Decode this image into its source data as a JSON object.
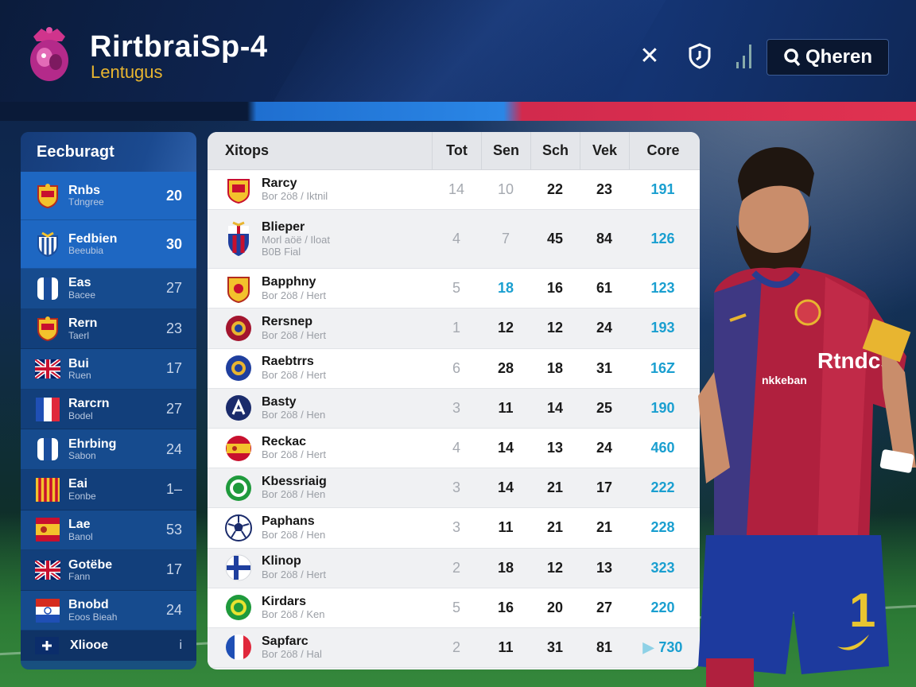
{
  "header": {
    "title": "RirtbraiSp-4",
    "subtitle": "Lentugus",
    "button_label": "Qheren"
  },
  "sidebar": {
    "title": "Eecburagt",
    "items": [
      {
        "name": "Rnbs",
        "sub": "Tdngree",
        "value": "20",
        "flag": "spain-crest"
      },
      {
        "name": "Fedbien",
        "sub": "Beeubia",
        "value": "30",
        "flag": "stripe-crest"
      },
      {
        "name": "Eas",
        "sub": "Bacee",
        "value": "27",
        "flag": "blue-white-crest"
      },
      {
        "name": "Rern",
        "sub": "Taerl",
        "value": "23",
        "flag": "spain-crest"
      },
      {
        "name": "Bui",
        "sub": "Ruen",
        "value": "17",
        "flag": "uk-flag"
      },
      {
        "name": "Rarcrn",
        "sub": "Bodel",
        "value": "27",
        "flag": "france-flag"
      },
      {
        "name": "Ehrbing",
        "sub": "Sabon",
        "value": "24",
        "flag": "blue-white-crest"
      },
      {
        "name": "Eai",
        "sub": "Eonbe",
        "value": "1–",
        "flag": "catalonia-flag"
      },
      {
        "name": "Lae",
        "sub": "Banol",
        "value": "53",
        "flag": "spain-flag"
      },
      {
        "name": "Gotëbe",
        "sub": "Fann",
        "value": "17",
        "flag": "uk-flag"
      },
      {
        "name": "Bnobd",
        "sub": "Eoos Bieah",
        "value": "24",
        "flag": "paraguay-flag"
      }
    ],
    "footer_label": "Xliooe",
    "footer_value": "i"
  },
  "table": {
    "headers": [
      "Xitops",
      "Tot",
      "Sen",
      "Sch",
      "Vek",
      "Core"
    ],
    "rows": [
      {
        "name": "Rarcy",
        "sub": "Bor 2ö8 / Iktnil",
        "c1": "14",
        "c2": "10",
        "c3": "22",
        "c4": "23",
        "core": "191",
        "crest": "spain-shield"
      },
      {
        "name": "Blieper",
        "sub": "Morl aöë / Iloat",
        "sub2": "B0B Fial",
        "c1": "4",
        "c2": "7",
        "c3": "45",
        "c4": "84",
        "core": "126",
        "crest": "barca-crest"
      },
      {
        "name": "Bapphny",
        "sub": "Bor 2ö8 / Hert",
        "c1": "5",
        "c2": "18",
        "c3": "16",
        "c4": "61",
        "core": "123",
        "crest": "yellow-shield"
      },
      {
        "name": "Rersnep",
        "sub": "Bor 2ö8 / Hert",
        "c1": "1",
        "c2": "12",
        "c3": "12",
        "c4": "24",
        "core": "193",
        "crest": "red-circle"
      },
      {
        "name": "Raebtrrs",
        "sub": "Bor 2ö8 / Hert",
        "c1": "6",
        "c2": "28",
        "c3": "18",
        "c4": "31",
        "core": "16Z",
        "crest": "blue-yellow-circle"
      },
      {
        "name": "Basty",
        "sub": "Bor 2ö8 / Hen",
        "c1": "3",
        "c2": "11",
        "c3": "14",
        "c4": "25",
        "core": "190",
        "crest": "navy-circle"
      },
      {
        "name": "Reckac",
        "sub": "Bor 2ö8 / Hert",
        "c1": "4",
        "c2": "14",
        "c3": "13",
        "c4": "24",
        "core": "460",
        "crest": "spain-circle"
      },
      {
        "name": "Kbessriaig",
        "sub": "Bor 2ö8 / Hen",
        "c1": "3",
        "c2": "14",
        "c3": "21",
        "c4": "17",
        "core": "222",
        "crest": "green-circle"
      },
      {
        "name": "Paphans",
        "sub": "Bor 2ö8 / Hen",
        "c1": "3",
        "c2": "11",
        "c3": "21",
        "c4": "21",
        "core": "228",
        "crest": "football"
      },
      {
        "name": "Klinop",
        "sub": "Bor 2ö8 / Hert",
        "c1": "2",
        "c2": "18",
        "c3": "12",
        "c4": "13",
        "core": "323",
        "crest": "finland-circle"
      },
      {
        "name": "Kirdars",
        "sub": "Bor 2ö8 / Ken",
        "c1": "5",
        "c2": "16",
        "c3": "20",
        "c4": "27",
        "core": "220",
        "crest": "green-yellow-circle"
      },
      {
        "name": "Sapfarc",
        "sub": "Bor 2ö8 / Hal",
        "c1": "2",
        "c2": "11",
        "c3": "31",
        "c4": "81",
        "core": "730",
        "crest": "france-circle"
      }
    ]
  },
  "player": {
    "shirt_text": "Rtndcs",
    "shirt_subtext": "nkkeban",
    "shorts_number": "1"
  }
}
